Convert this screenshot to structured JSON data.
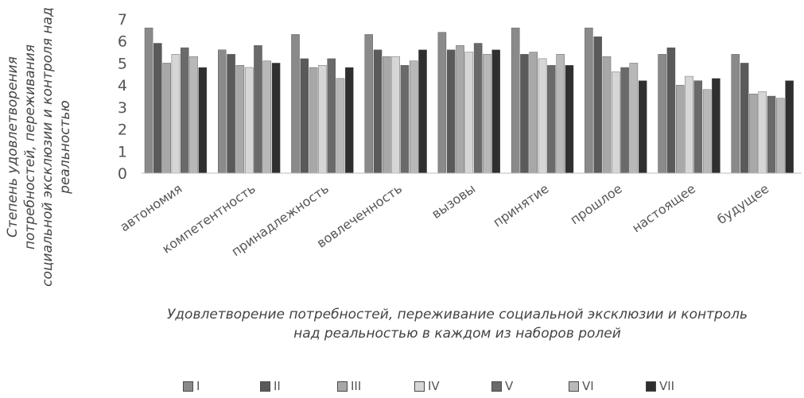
{
  "chart_data": {
    "type": "bar",
    "title": "",
    "xlabel": "Удовлетворение потребностей, переживание социальной эксклюзии и контроль над реальностью в каждом из наборов ролей",
    "ylabel": "Степень удовлетворения потребностей, переживания социальной эксклюзии и контроля над реальностью",
    "ylim": [
      0,
      7
    ],
    "yticks": [
      "0",
      "1",
      "2",
      "3",
      "4",
      "5",
      "6",
      "7"
    ],
    "grid": false,
    "legend_position": "bottom",
    "categories": [
      "автономия",
      "компетентность",
      "принадлежность",
      "вовлеченность",
      "вызовы",
      "принятие",
      "прошлое",
      "настоящее",
      "будущее"
    ],
    "series": [
      {
        "name": "I",
        "color": "#8a8a8a",
        "values": [
          6.6,
          5.6,
          6.3,
          6.3,
          6.4,
          6.6,
          6.6,
          5.4,
          5.4
        ]
      },
      {
        "name": "II",
        "color": "#5a5a5a",
        "values": [
          5.9,
          5.4,
          5.2,
          5.6,
          5.6,
          5.4,
          6.2,
          5.7,
          5.0
        ]
      },
      {
        "name": "III",
        "color": "#a8a8a8",
        "values": [
          5.0,
          4.9,
          4.8,
          5.3,
          5.8,
          5.5,
          5.3,
          4.0,
          3.6
        ]
      },
      {
        "name": "IV",
        "color": "#d6d6d6",
        "values": [
          5.4,
          4.8,
          4.9,
          5.3,
          5.5,
          5.2,
          4.6,
          4.4,
          3.7
        ]
      },
      {
        "name": "V",
        "color": "#6a6a6a",
        "values": [
          5.7,
          5.8,
          5.2,
          4.9,
          5.9,
          4.9,
          4.8,
          4.2,
          3.5
        ]
      },
      {
        "name": "VI",
        "color": "#b8b8b8",
        "values": [
          5.3,
          5.1,
          4.3,
          5.1,
          5.4,
          5.4,
          5.0,
          3.8,
          3.4
        ]
      },
      {
        "name": "VII",
        "color": "#2f2f2f",
        "values": [
          4.8,
          5.0,
          4.8,
          5.6,
          5.6,
          4.9,
          4.2,
          4.3,
          4.2
        ]
      }
    ]
  }
}
